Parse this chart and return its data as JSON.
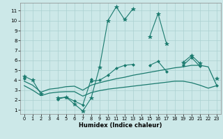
{
  "title": "",
  "xlabel": "Humidex (Indice chaleur)",
  "background_color": "#cce8e8",
  "grid_color": "#aad0d0",
  "line_color": "#1a7a6e",
  "x": [
    0,
    1,
    2,
    3,
    4,
    5,
    6,
    7,
    8,
    9,
    10,
    11,
    12,
    13,
    14,
    15,
    16,
    17,
    18,
    19,
    20,
    21,
    22,
    23
  ],
  "line1_y": [
    4.4,
    4.0,
    2.6,
    null,
    2.2,
    2.3,
    1.6,
    0.9,
    2.2,
    5.3,
    10.0,
    11.4,
    10.1,
    11.2,
    null,
    8.4,
    10.7,
    7.7,
    null,
    5.8,
    6.5,
    5.7,
    null,
    4.2
  ],
  "line2_y": [
    null,
    null,
    null,
    null,
    2.1,
    2.3,
    1.9,
    1.5,
    4.1,
    null,
    null,
    null,
    null,
    null,
    null,
    null,
    null,
    null,
    null,
    null,
    null,
    null,
    null,
    null
  ],
  "line3_y": [
    4.2,
    null,
    null,
    null,
    null,
    null,
    null,
    null,
    3.9,
    4.0,
    4.5,
    5.2,
    5.5,
    5.6,
    null,
    5.5,
    5.9,
    4.9,
    null,
    5.5,
    6.3,
    5.4,
    null,
    3.5
  ],
  "line4_y": [
    3.9,
    3.5,
    2.8,
    3.1,
    3.2,
    3.35,
    3.4,
    3.0,
    3.5,
    3.75,
    3.95,
    4.15,
    4.3,
    4.5,
    4.65,
    4.8,
    4.95,
    5.1,
    5.25,
    5.35,
    5.5,
    5.5,
    5.35,
    3.5
  ],
  "line5_y": [
    3.45,
    3.0,
    2.45,
    2.7,
    2.8,
    2.85,
    2.85,
    2.4,
    2.75,
    2.95,
    3.1,
    3.2,
    3.3,
    3.4,
    3.5,
    3.6,
    3.7,
    3.8,
    3.9,
    3.9,
    3.75,
    3.5,
    3.2,
    3.45
  ],
  "ylim": [
    0.6,
    11.8
  ],
  "yticks": [
    1,
    2,
    3,
    4,
    5,
    6,
    7,
    8,
    9,
    10,
    11
  ],
  "xlim": [
    -0.5,
    23.5
  ],
  "xticks": [
    0,
    1,
    2,
    3,
    4,
    5,
    6,
    7,
    8,
    9,
    10,
    11,
    12,
    13,
    14,
    15,
    16,
    17,
    18,
    19,
    20,
    21,
    22,
    23
  ]
}
